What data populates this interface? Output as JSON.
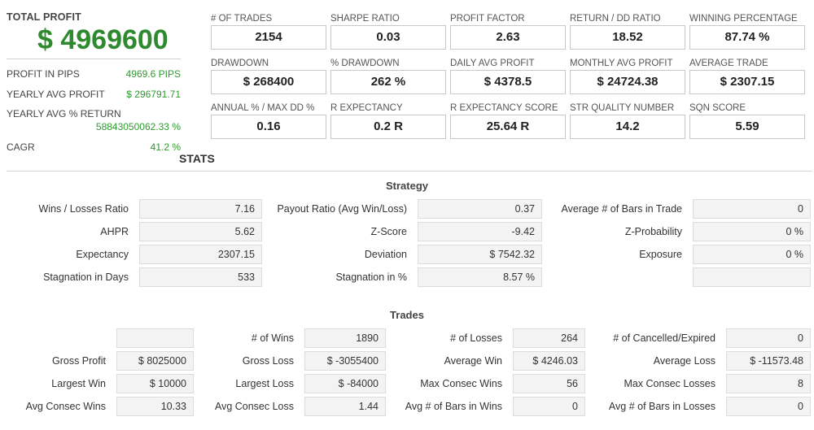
{
  "summary": {
    "total_profit_label": "TOTAL PROFIT",
    "total_profit_value": "$ 4969600",
    "rows": [
      {
        "label": "PROFIT IN PIPS",
        "value": "4969.6 PIPS"
      },
      {
        "label": "YEARLY AVG PROFIT",
        "value": "$ 296791.71"
      },
      {
        "label": "YEARLY AVG % RETURN",
        "value": "58843050062.33 %"
      },
      {
        "label": "CAGR",
        "value": "41.2 %"
      }
    ]
  },
  "metrics": [
    {
      "label": "# OF TRADES",
      "value": "2154"
    },
    {
      "label": "SHARPE RATIO",
      "value": "0.03"
    },
    {
      "label": "PROFIT FACTOR",
      "value": "2.63"
    },
    {
      "label": "RETURN / DD RATIO",
      "value": "18.52"
    },
    {
      "label": "WINNING PERCENTAGE",
      "value": "87.74 %"
    },
    {
      "label": "DRAWDOWN",
      "value": "$ 268400"
    },
    {
      "label": "% DRAWDOWN",
      "value": "262 %"
    },
    {
      "label": "DAILY AVG PROFIT",
      "value": "$ 4378.5"
    },
    {
      "label": "MONTHLY AVG PROFIT",
      "value": "$ 24724.38"
    },
    {
      "label": "AVERAGE TRADE",
      "value": "$ 2307.15"
    },
    {
      "label": "ANNUAL % / MAX DD %",
      "value": "0.16"
    },
    {
      "label": "R EXPECTANCY",
      "value": "0.2 R"
    },
    {
      "label": "R EXPECTANCY SCORE",
      "value": "25.64 R"
    },
    {
      "label": "STR QUALITY NUMBER",
      "value": "14.2"
    },
    {
      "label": "SQN SCORE",
      "value": "5.59"
    }
  ],
  "stats_title": "STATS",
  "strategy": {
    "title": "Strategy",
    "rows": [
      [
        {
          "label": "Wins / Losses Ratio",
          "value": "7.16"
        },
        {
          "label": "Payout Ratio (Avg Win/Loss)",
          "value": "0.37"
        },
        {
          "label": "Average # of Bars in Trade",
          "value": "0"
        }
      ],
      [
        {
          "label": "AHPR",
          "value": "5.62"
        },
        {
          "label": "Z-Score",
          "value": "-9.42"
        },
        {
          "label": "Z-Probability",
          "value": "0 %"
        }
      ],
      [
        {
          "label": "Expectancy",
          "value": "2307.15"
        },
        {
          "label": "Deviation",
          "value": "$ 7542.32"
        },
        {
          "label": "Exposure",
          "value": "0 %"
        }
      ],
      [
        {
          "label": "Stagnation in Days",
          "value": "533"
        },
        {
          "label": "Stagnation in %",
          "value": "8.57 %"
        },
        {
          "label": "",
          "value": ""
        }
      ]
    ]
  },
  "trades": {
    "title": "Trades",
    "rows": [
      [
        {
          "label": "",
          "value": ""
        },
        {
          "label": "# of Wins",
          "value": "1890"
        },
        {
          "label": "# of Losses",
          "value": "264"
        },
        {
          "label": "# of Cancelled/Expired",
          "value": "0"
        }
      ],
      [
        {
          "label": "Gross Profit",
          "value": "$ 8025000"
        },
        {
          "label": "Gross Loss",
          "value": "$ -3055400"
        },
        {
          "label": "Average Win",
          "value": "$ 4246.03"
        },
        {
          "label": "Average Loss",
          "value": "$ -11573.48"
        }
      ],
      [
        {
          "label": "Largest Win",
          "value": "$ 10000"
        },
        {
          "label": "Largest Loss",
          "value": "$ -84000"
        },
        {
          "label": "Max Consec Wins",
          "value": "56"
        },
        {
          "label": "Max Consec Losses",
          "value": "8"
        }
      ],
      [
        {
          "label": "Avg Consec Wins",
          "value": "10.33"
        },
        {
          "label": "Avg Consec Loss",
          "value": "1.44"
        },
        {
          "label": "Avg # of Bars in Wins",
          "value": "0"
        },
        {
          "label": "Avg # of Bars in Losses",
          "value": "0"
        }
      ]
    ]
  }
}
